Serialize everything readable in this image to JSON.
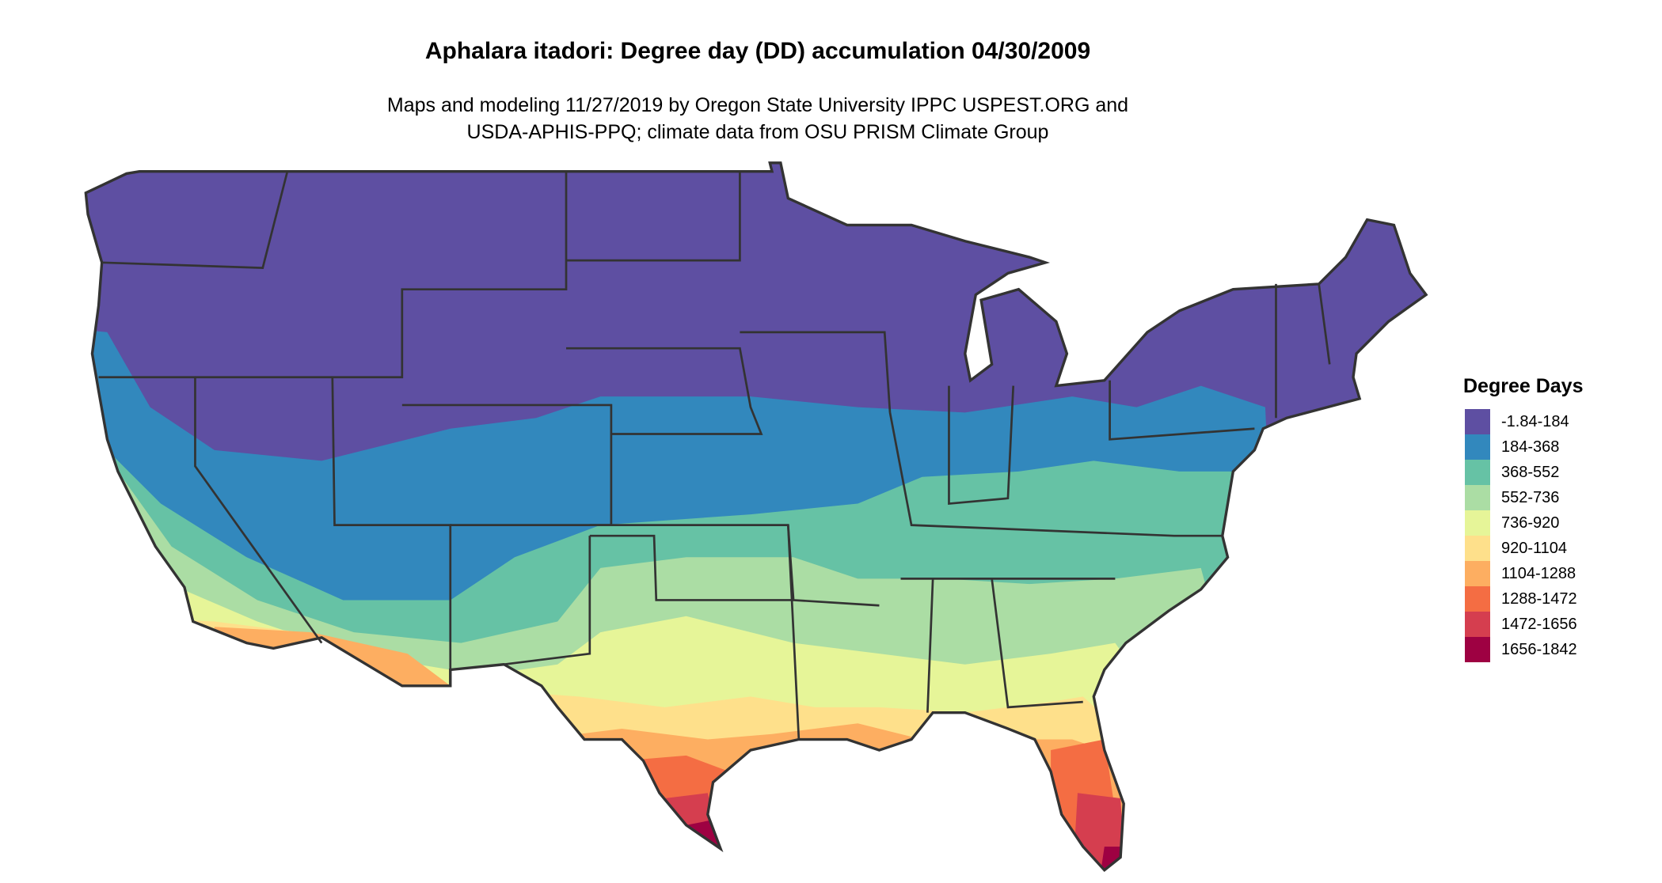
{
  "title": "Aphalara itadori: Degree day (DD) accumulation 04/30/2009",
  "subtitle_line1": "Maps and modeling 11/27/2019 by Oregon State University IPPC USPEST.ORG and",
  "subtitle_line2": "USDA-APHIS-PPQ; climate data from OSU PRISM Climate Group",
  "legend": {
    "title": "Degree Days",
    "position": "right",
    "items": [
      {
        "label": "-1.84-184",
        "color": "#5E4FA2"
      },
      {
        "label": "184-368",
        "color": "#3288BD"
      },
      {
        "label": "368-552",
        "color": "#66C2A5"
      },
      {
        "label": "552-736",
        "color": "#ABDDA4"
      },
      {
        "label": "736-920",
        "color": "#E6F598"
      },
      {
        "label": "920-1104",
        "color": "#FEE08B"
      },
      {
        "label": "1104-1288",
        "color": "#FDAE61"
      },
      {
        "label": "1288-1472",
        "color": "#F46D43"
      },
      {
        "label": "1472-1656",
        "color": "#D53E4F"
      },
      {
        "label": "1656-1842",
        "color": "#9E0142"
      }
    ]
  },
  "map": {
    "region": "Contiguous United States",
    "border_color": "#333333"
  }
}
